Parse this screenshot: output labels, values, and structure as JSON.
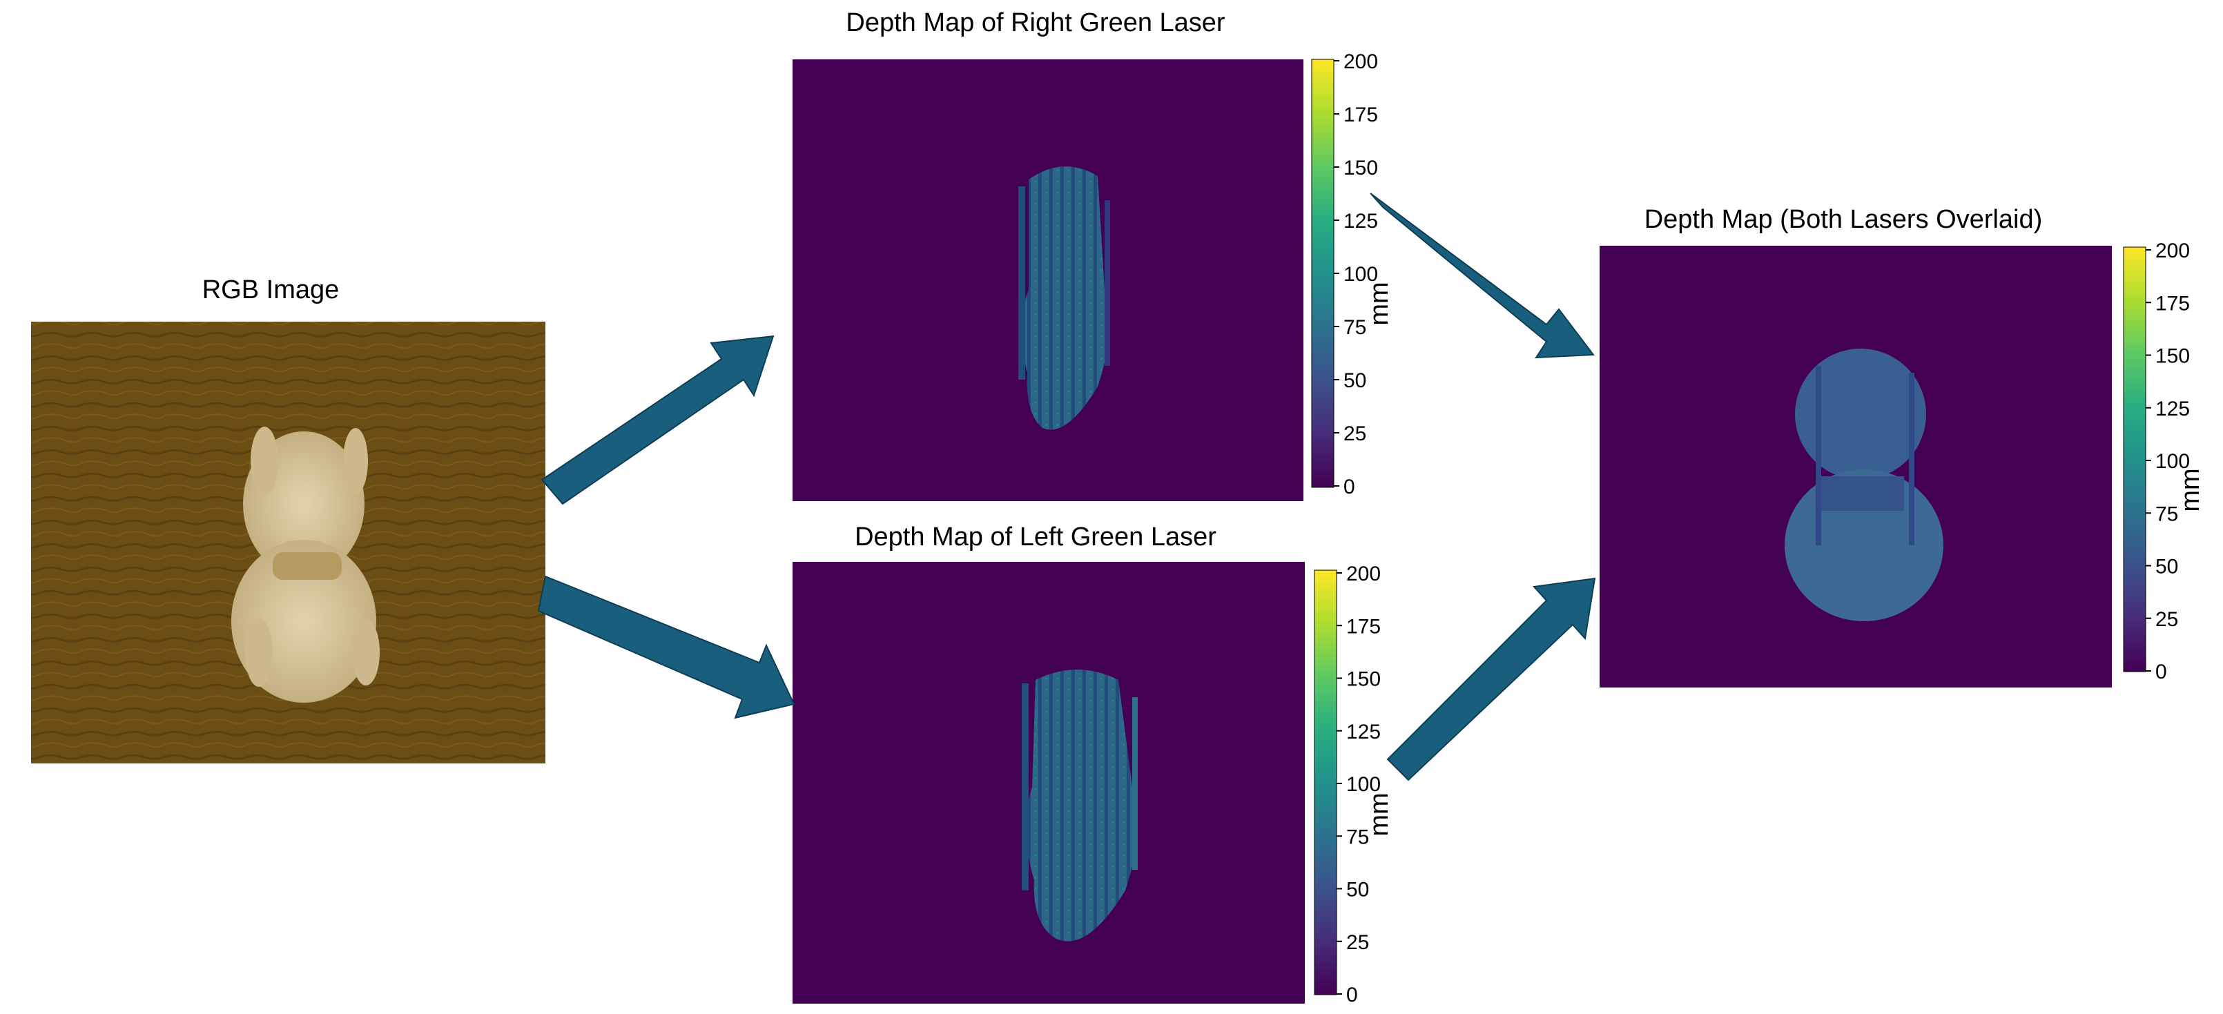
{
  "panels": {
    "rgb": {
      "title": "RGB Image"
    },
    "right": {
      "title": "Depth Map of Right Green Laser"
    },
    "left": {
      "title": "Depth Map of Left Green Laser"
    },
    "overlay": {
      "title": "Depth Map (Both Lasers Overlaid)"
    }
  },
  "colorbar": {
    "unit": "mm",
    "ticks": [
      "200",
      "175",
      "150",
      "125",
      "100",
      "75",
      "50",
      "25",
      "0"
    ],
    "range": [
      0,
      200
    ],
    "colors": [
      "#440154",
      "#472c7a",
      "#3b528b",
      "#2c728e",
      "#21918c",
      "#28ae80",
      "#5ec962",
      "#addc30",
      "#fde725"
    ]
  },
  "colors": {
    "background_depth": "#440154",
    "arrow": "#1a5e7e",
    "wood": "#6b4e14",
    "chicken": "#d6c39a"
  }
}
